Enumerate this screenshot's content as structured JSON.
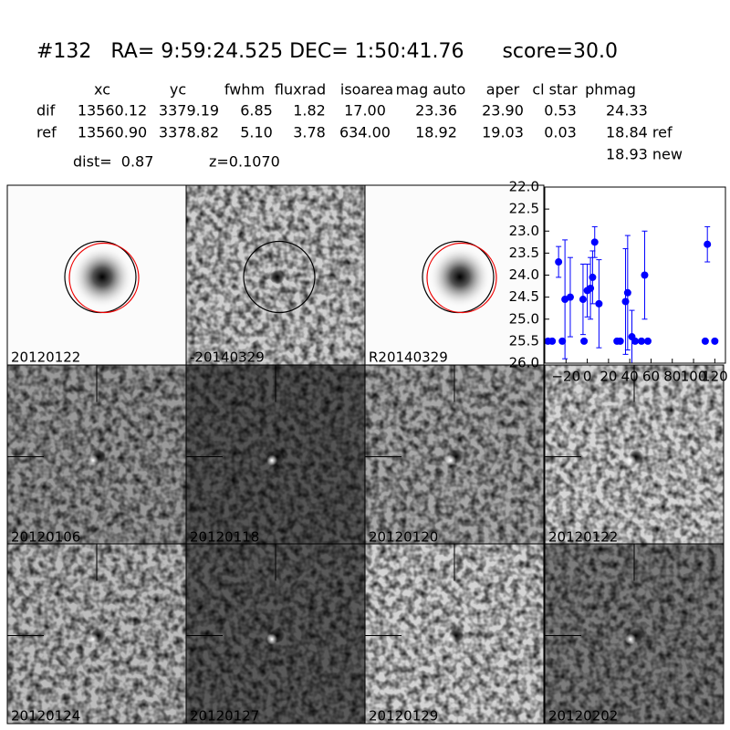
{
  "header": {
    "title": "#132   RA= 9:59:24.525 DEC= 1:50:41.76      score=30.0",
    "table": {
      "columns": [
        "xc",
        "yc",
        "fwhm",
        "fluxrad",
        "isoarea",
        "mag auto",
        "aper",
        "cl star",
        "phmag"
      ],
      "rows": [
        {
          "label": "dif",
          "cells": [
            "13560.12",
            "3379.19",
            "6.85",
            "1.82",
            "17.00",
            "23.36",
            "23.90",
            "0.53",
            "24.33"
          ]
        },
        {
          "label": "ref",
          "cells": [
            "13560.90",
            "3378.82",
            "5.10",
            "3.78",
            "634.00",
            "18.92",
            "19.03",
            "0.03",
            "18.84 ref"
          ]
        }
      ],
      "extra": "18.93 new"
    },
    "dist": "dist=  0.87",
    "z": "z=0.1070"
  },
  "panels": [
    {
      "label": "20120122"
    },
    {
      "label": "-20140329"
    },
    {
      "label": "R20140329"
    },
    {
      "label": "20120106"
    },
    {
      "label": "20120118"
    },
    {
      "label": "20120120"
    },
    {
      "label": "20120122",
      "label_color": "#ff0000"
    },
    {
      "label": "20120124"
    },
    {
      "label": "20120127"
    },
    {
      "label": "20120129"
    },
    {
      "label": "20120202"
    }
  ],
  "chart_data": {
    "type": "scatter",
    "series": [
      {
        "color": "#0000ff",
        "x": [
          -37,
          -33,
          -23.5,
          -27,
          -21,
          -16,
          -4,
          -3,
          0,
          3,
          5,
          7,
          11,
          28,
          31,
          36,
          38,
          42,
          45,
          51,
          54,
          57,
          113,
          111,
          120
        ],
        "values": [
          25.5,
          25.5,
          25.5,
          23.7,
          24.55,
          24.5,
          24.55,
          25.5,
          24.35,
          24.3,
          24.05,
          23.25,
          24.65,
          25.5,
          25.5,
          24.6,
          24.4,
          25.4,
          25.5,
          25.5,
          24.0,
          25.5,
          23.3,
          25.5,
          25.5
        ],
        "errors": [
          0,
          0,
          0,
          0.35,
          1.35,
          0.9,
          0.8,
          0,
          0.6,
          0.7,
          0.6,
          0.35,
          1.0,
          0,
          0,
          1.2,
          1.3,
          0.6,
          0,
          0,
          1.0,
          0,
          0.4,
          0,
          0
        ]
      }
    ],
    "xlim": [
      -40,
      130
    ],
    "ylim": [
      22,
      26
    ],
    "y_inverted": true,
    "xticks": [
      {
        "value": -20,
        "label": "−20"
      },
      0,
      20,
      40,
      60,
      80,
      100,
      120
    ],
    "yticks": [
      {
        "value": 22,
        "label": "22.0"
      },
      {
        "value": 22.5,
        "label": "22.5"
      },
      {
        "value": 23,
        "label": "23.0"
      },
      {
        "value": 23.5,
        "label": "23.5"
      },
      {
        "value": 24,
        "label": "24.0"
      },
      {
        "value": 24.5,
        "label": "24.5"
      },
      {
        "value": 25,
        "label": "25.0"
      },
      {
        "value": 25.5,
        "label": "25.5"
      },
      {
        "value": 26,
        "label": "26.0"
      }
    ]
  }
}
